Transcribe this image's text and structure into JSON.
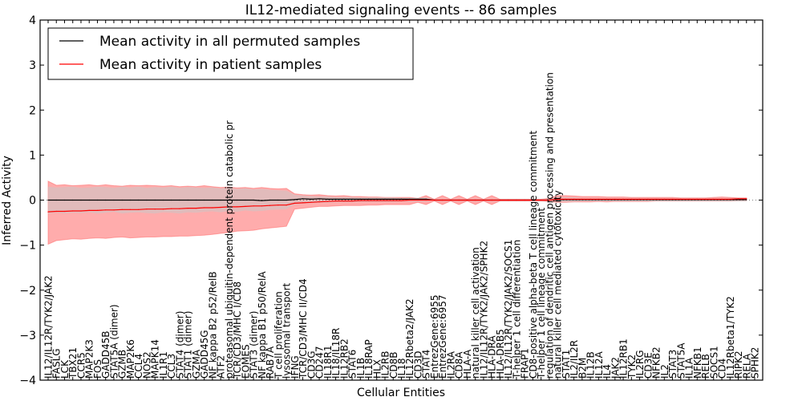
{
  "chart_data": {
    "type": "line",
    "title": "IL12-mediated signaling events -- 86 samples",
    "xlabel": "Cellular Entities",
    "ylabel": "Inferred Activity",
    "ylim": [
      -4,
      4
    ],
    "yticks": [
      "4",
      "3",
      "2",
      "1",
      "0",
      "−1",
      "−2",
      "−3",
      "−4"
    ],
    "ytick_values": [
      4,
      3,
      2,
      1,
      0,
      -1,
      -2,
      -3,
      -4
    ],
    "grid": false,
    "legend": {
      "placement": "top-left",
      "entries": [
        {
          "label": "Mean activity in all permuted samples",
          "color": "#000000"
        },
        {
          "label": "Mean activity in patient samples",
          "color": "#ff0000"
        }
      ]
    },
    "categories": [
      "IL12/IL12R/TYK2/JAK2",
      "FASLG",
      "LCK",
      "TBX21",
      "CCR5",
      "MAP2K3",
      "FOS",
      "GADD45B",
      "STAT5A (dimer)",
      "GZMB",
      "MAP2K6",
      "CCL4",
      "NOS2",
      "MAPK14",
      "IL1R1",
      "CCL3",
      "STAT4 (dimer)",
      "STAT1 (dimer)",
      "GZMA",
      "GADD45G",
      "NF kappa B2 p52/RelB",
      "ATF2",
      "proteasomal ubiquitin-dependent protein catabolic pr",
      "TCR/CD3/MHC I/CD8",
      "EOMES",
      "STAT3 (dimer)",
      "NF kappa B1 p50/RelA",
      "RAB7A",
      "T cell proliferation",
      "lysosomal transport",
      "IFNG",
      "TCR/CD3/MHC II/CD4",
      "CD3G",
      "CD247",
      "IL18R1",
      "IL18/IL18R",
      "IL12RB2",
      "STAT6",
      "IL1B",
      "IL18RAP",
      "HLX",
      "IL2RB",
      "CD8B",
      "IL18",
      "IL12Rbeta2/JAK2",
      "CD3D",
      "STAT4",
      "EntrezGene:6955",
      "EntrezGene:6957",
      "IL2RA",
      "CD8A",
      "HLA-A",
      "natural killer cell activation",
      "IL12/IL12R/TYK2/JAK2/SPHK2",
      "HLA-DRA",
      "HLA-DRB5",
      "IL12/IL12R/TYK2/JAK2/SOCS1",
      "T-helper 1 cell differentiation",
      "FRAP1",
      "CD8-positive alpha-beta T cell lineage commitment",
      "T-helper 1 cell lineage commitment",
      "regulation of dendritic cell antigen processing and presentation",
      "natural killer cell mediated cytotoxicity",
      "STAT1",
      "IL2/IL2R",
      "B2M",
      "IL12B",
      "IL12A",
      "IL4",
      "JAK2",
      "IL12RB1",
      "TYK2",
      "IL2RG",
      "CD3E",
      "NFKB2",
      "IL2",
      "STAT3",
      "STAT5A",
      "IL1A",
      "NFKB1",
      "RELB",
      "SOCS1",
      "CD4",
      "IL12Rbeta1/TYK2",
      "RIPK2",
      "RELA",
      "SPHK2"
    ],
    "series": [
      {
        "name": "Mean activity in all permuted samples",
        "color": "#000000",
        "values": [
          0,
          0,
          0,
          0,
          0,
          0,
          0,
          0,
          0,
          0,
          0,
          0,
          0,
          0,
          0,
          0,
          0,
          0,
          0,
          0,
          0,
          0,
          0,
          0,
          0,
          0,
          -0.01,
          0,
          0,
          0,
          0.01,
          0.03,
          0.02,
          0.03,
          0.02,
          0.02,
          0.02,
          0.02,
          0.02,
          0.02,
          0.02,
          0.02,
          0.02,
          0.02,
          0.02,
          0.02,
          0.02,
          0,
          0,
          0,
          0,
          0,
          0,
          0,
          0,
          0,
          0,
          0,
          0,
          0,
          0,
          0,
          0.01,
          0.01,
          0.01,
          0.01,
          0.01,
          0.01,
          0.01,
          0.01,
          0.01,
          0.01,
          0.01,
          0.01,
          0.01,
          0.01,
          0.01,
          0.01,
          0.01,
          0.01,
          0.01,
          0.01,
          0.01,
          0.01,
          0.01,
          0.01
        ]
      },
      {
        "name": "Mean activity in patient samples",
        "color": "#ff0000",
        "values": [
          -0.26,
          -0.25,
          -0.25,
          -0.24,
          -0.24,
          -0.23,
          -0.23,
          -0.22,
          -0.22,
          -0.21,
          -0.21,
          -0.21,
          -0.2,
          -0.2,
          -0.2,
          -0.19,
          -0.19,
          -0.18,
          -0.18,
          -0.17,
          -0.17,
          -0.16,
          -0.15,
          -0.15,
          -0.14,
          -0.13,
          -0.13,
          -0.12,
          -0.11,
          -0.11,
          -0.07,
          -0.06,
          -0.05,
          -0.04,
          -0.03,
          -0.02,
          -0.02,
          -0.02,
          -0.01,
          -0.01,
          -0.01,
          -0.01,
          -0.01,
          -0.01,
          0,
          0,
          0,
          0,
          0,
          0,
          0,
          0,
          0,
          0,
          0,
          0,
          0,
          0,
          0,
          0,
          0,
          0,
          0.02,
          0.02,
          0.02,
          0.02,
          0.02,
          0.02,
          0.02,
          0.02,
          0.02,
          0.02,
          0.02,
          0.02,
          0.02,
          0.02,
          0.02,
          0.02,
          0.02,
          0.02,
          0.02,
          0.02,
          0.02,
          0.02,
          0.03,
          0.03
        ]
      }
    ],
    "bands": [
      {
        "name": "patient samples spread",
        "color": "#ff8080",
        "lower": [
          -0.98,
          -0.9,
          -0.88,
          -0.86,
          -0.87,
          -0.85,
          -0.84,
          -0.85,
          -0.83,
          -0.82,
          -0.84,
          -0.83,
          -0.82,
          -0.82,
          -0.81,
          -0.81,
          -0.8,
          -0.8,
          -0.79,
          -0.78,
          -0.76,
          -0.74,
          -0.72,
          -0.69,
          -0.68,
          -0.67,
          -0.64,
          -0.62,
          -0.6,
          -0.58,
          -0.2,
          -0.18,
          -0.16,
          -0.14,
          -0.14,
          -0.13,
          -0.12,
          -0.12,
          -0.12,
          -0.11,
          -0.11,
          -0.1,
          -0.1,
          -0.1,
          -0.1,
          -0.05,
          -0.1,
          -0.02,
          -0.1,
          -0.02,
          -0.1,
          -0.02,
          -0.1,
          -0.02,
          -0.1,
          -0.02,
          -0.02,
          -0.02,
          -0.02,
          -0.02,
          -0.02,
          -0.03,
          -0.05,
          -0.05,
          -0.04,
          -0.04,
          -0.04,
          -0.03,
          -0.04,
          -0.03,
          -0.03,
          -0.03,
          -0.03,
          -0.03,
          -0.02,
          -0.02,
          -0.02,
          -0.02,
          -0.02,
          -0.02,
          -0.02,
          -0.02,
          -0.02,
          -0.02,
          -0.01,
          -0.01
        ],
        "upper": [
          0.42,
          0.33,
          0.34,
          0.32,
          0.33,
          0.34,
          0.32,
          0.34,
          0.32,
          0.31,
          0.33,
          0.32,
          0.33,
          0.32,
          0.31,
          0.32,
          0.3,
          0.31,
          0.3,
          0.32,
          0.3,
          0.28,
          0.29,
          0.27,
          0.28,
          0.26,
          0.28,
          0.26,
          0.25,
          0.26,
          0.14,
          0.12,
          0.11,
          0.12,
          0.1,
          0.09,
          0.1,
          0.08,
          0.08,
          0.07,
          0.07,
          0.06,
          0.06,
          0.06,
          0.06,
          0.04,
          0.1,
          0.02,
          0.1,
          0.02,
          0.1,
          0.02,
          0.1,
          0.02,
          0.1,
          0.02,
          0.02,
          0.02,
          0.02,
          0.02,
          0.02,
          0.04,
          0.1,
          0.1,
          0.09,
          0.08,
          0.08,
          0.08,
          0.07,
          0.07,
          0.07,
          0.06,
          0.06,
          0.06,
          0.06,
          0.06,
          0.06,
          0.05,
          0.05,
          0.05,
          0.05,
          0.06,
          0.07,
          0.06,
          0.05,
          0.05
        ]
      },
      {
        "name": "permuted samples spread",
        "color": "#c8c8c8",
        "lower": [
          -0.3,
          -0.28,
          -0.3,
          -0.28,
          -0.29,
          -0.27,
          -0.3,
          -0.28,
          -0.26,
          -0.3,
          -0.28,
          -0.27,
          -0.29,
          -0.3,
          -0.27,
          -0.28,
          -0.3,
          -0.27,
          -0.28,
          -0.26,
          -0.25,
          -0.27,
          -0.24,
          -0.26,
          -0.23,
          -0.25,
          -0.24,
          -0.22,
          -0.21,
          -0.2,
          -0.1,
          -0.08,
          -0.07,
          -0.06,
          -0.06,
          -0.05,
          -0.05,
          -0.05,
          -0.04,
          -0.04,
          -0.04,
          -0.04,
          -0.04,
          -0.03,
          -0.03,
          -0.03,
          -0.03,
          -0.01,
          -0.01,
          -0.01,
          -0.01,
          -0.01,
          -0.01,
          -0.01,
          -0.01,
          -0.01,
          -0.01,
          -0.01,
          -0.01,
          -0.01,
          -0.01,
          -0.02,
          -0.04,
          -0.04,
          -0.04,
          -0.03,
          -0.03,
          -0.03,
          -0.03,
          -0.03,
          -0.03,
          -0.03,
          -0.03,
          -0.03,
          -0.03,
          -0.03,
          -0.03,
          -0.03,
          -0.03,
          -0.03,
          -0.03,
          -0.03,
          -0.03,
          -0.03,
          -0.03,
          -0.03
        ],
        "upper": [
          0.3,
          0.28,
          0.29,
          0.3,
          0.27,
          0.28,
          0.3,
          0.29,
          0.27,
          0.3,
          0.28,
          0.3,
          0.27,
          0.29,
          0.28,
          0.3,
          0.27,
          0.29,
          0.28,
          0.27,
          0.28,
          0.26,
          0.27,
          0.25,
          0.26,
          0.24,
          0.25,
          0.23,
          0.22,
          0.21,
          0.12,
          0.1,
          0.09,
          0.08,
          0.08,
          0.07,
          0.07,
          0.07,
          0.06,
          0.06,
          0.06,
          0.06,
          0.06,
          0.05,
          0.05,
          0.05,
          0.05,
          0.02,
          0.02,
          0.02,
          0.02,
          0.02,
          0.02,
          0.02,
          0.02,
          0.02,
          0.02,
          0.02,
          0.02,
          0.02,
          0.02,
          0.03,
          0.06,
          0.06,
          0.06,
          0.05,
          0.05,
          0.05,
          0.05,
          0.05,
          0.05,
          0.05,
          0.05,
          0.05,
          0.05,
          0.05,
          0.05,
          0.05,
          0.05,
          0.05,
          0.05,
          0.05,
          0.05,
          0.05,
          0.05,
          0.05
        ]
      }
    ]
  }
}
